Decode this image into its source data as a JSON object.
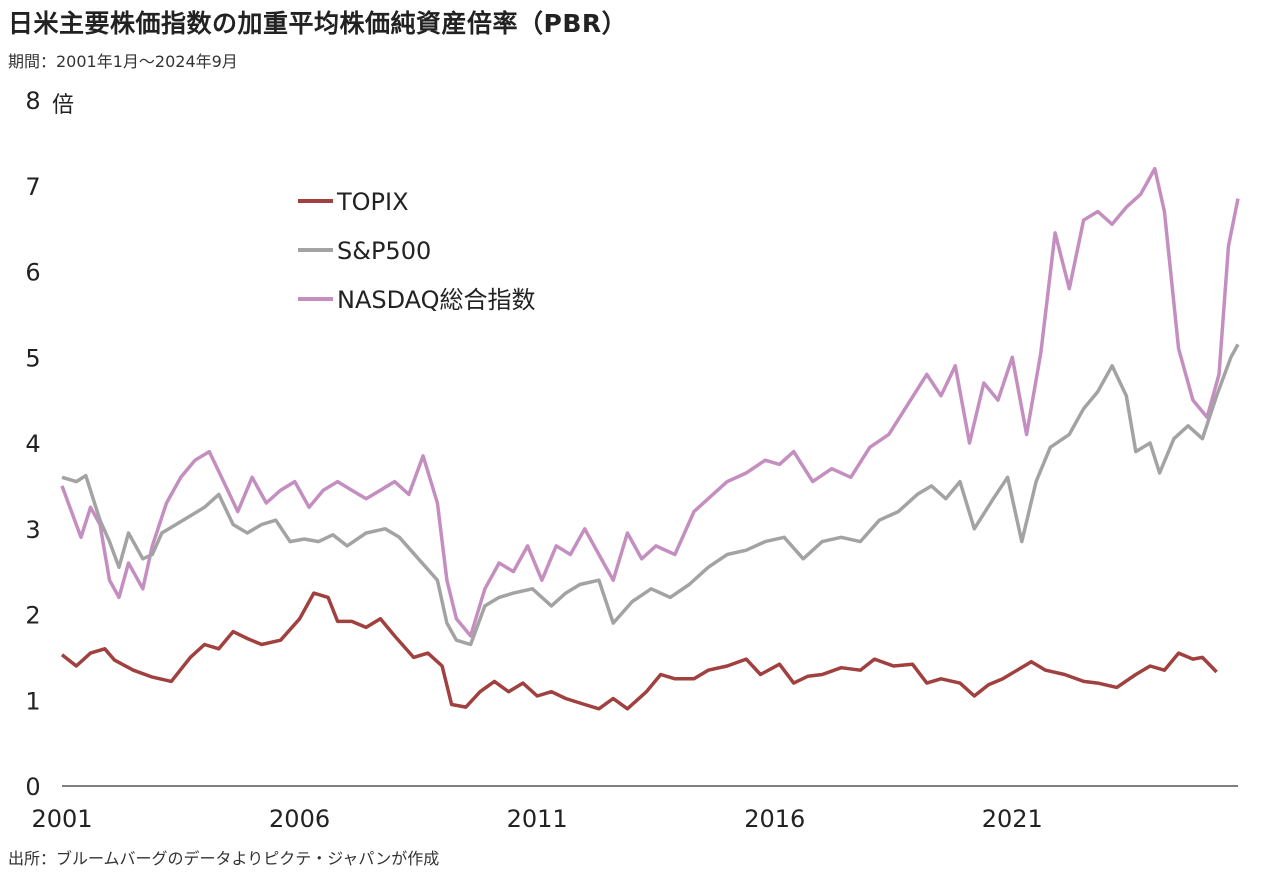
{
  "header": {
    "title": "日米主要株価指数の加重平均株価純資産倍率（PBR）",
    "period": "期間：2001年1月～2024年9月"
  },
  "footer": {
    "source": "出所：ブルームバーグのデータよりピクテ・ジャパンが作成"
  },
  "chart_data": {
    "type": "line",
    "ylabel": "倍",
    "ylim": [
      0,
      8
    ],
    "yticks": [
      "0",
      "1",
      "2",
      "3",
      "4",
      "5",
      "6",
      "7",
      "8"
    ],
    "xlim": [
      2001.0,
      2025.75
    ],
    "xticks": [
      {
        "label": "2001",
        "value": 2001
      },
      {
        "label": "2006",
        "value": 2006
      },
      {
        "label": "2011",
        "value": 2011
      },
      {
        "label": "2016",
        "value": 2016
      },
      {
        "label": "2021",
        "value": 2021
      }
    ],
    "grid": false,
    "legend_position": "upper-left-inside",
    "series": [
      {
        "name": "TOPIX",
        "color": "#a0403f",
        "points": [
          [
            2001.0,
            1.53
          ],
          [
            2001.3,
            1.4
          ],
          [
            2001.6,
            1.55
          ],
          [
            2001.9,
            1.6
          ],
          [
            2002.1,
            1.47
          ],
          [
            2002.5,
            1.35
          ],
          [
            2002.9,
            1.27
          ],
          [
            2003.3,
            1.22
          ],
          [
            2003.7,
            1.5
          ],
          [
            2004.0,
            1.65
          ],
          [
            2004.3,
            1.6
          ],
          [
            2004.6,
            1.8
          ],
          [
            2004.9,
            1.72
          ],
          [
            2005.2,
            1.65
          ],
          [
            2005.6,
            1.7
          ],
          [
            2006.0,
            1.95
          ],
          [
            2006.3,
            2.25
          ],
          [
            2006.6,
            2.2
          ],
          [
            2006.8,
            1.92
          ],
          [
            2007.1,
            1.92
          ],
          [
            2007.4,
            1.85
          ],
          [
            2007.7,
            1.95
          ],
          [
            2008.0,
            1.75
          ],
          [
            2008.4,
            1.5
          ],
          [
            2008.7,
            1.55
          ],
          [
            2009.0,
            1.4
          ],
          [
            2009.2,
            0.95
          ],
          [
            2009.5,
            0.92
          ],
          [
            2009.8,
            1.1
          ],
          [
            2010.1,
            1.22
          ],
          [
            2010.4,
            1.1
          ],
          [
            2010.7,
            1.2
          ],
          [
            2011.0,
            1.05
          ],
          [
            2011.3,
            1.1
          ],
          [
            2011.6,
            1.02
          ],
          [
            2012.0,
            0.95
          ],
          [
            2012.3,
            0.9
          ],
          [
            2012.6,
            1.02
          ],
          [
            2012.9,
            0.9
          ],
          [
            2013.3,
            1.1
          ],
          [
            2013.6,
            1.3
          ],
          [
            2013.9,
            1.25
          ],
          [
            2014.3,
            1.25
          ],
          [
            2014.6,
            1.35
          ],
          [
            2015.0,
            1.4
          ],
          [
            2015.4,
            1.48
          ],
          [
            2015.7,
            1.3
          ],
          [
            2016.1,
            1.42
          ],
          [
            2016.4,
            1.2
          ],
          [
            2016.7,
            1.28
          ],
          [
            2017.0,
            1.3
          ],
          [
            2017.4,
            1.38
          ],
          [
            2017.8,
            1.35
          ],
          [
            2018.1,
            1.48
          ],
          [
            2018.5,
            1.4
          ],
          [
            2018.9,
            1.42
          ],
          [
            2019.2,
            1.2
          ],
          [
            2019.5,
            1.25
          ],
          [
            2019.9,
            1.2
          ],
          [
            2020.2,
            1.05
          ],
          [
            2020.5,
            1.18
          ],
          [
            2020.8,
            1.25
          ],
          [
            2021.1,
            1.35
          ],
          [
            2021.4,
            1.45
          ],
          [
            2021.7,
            1.35
          ],
          [
            2022.1,
            1.3
          ],
          [
            2022.5,
            1.22
          ],
          [
            2022.8,
            1.2
          ],
          [
            2023.2,
            1.15
          ],
          [
            2023.6,
            1.3
          ],
          [
            2023.9,
            1.4
          ],
          [
            2024.2,
            1.35
          ],
          [
            2024.5,
            1.55
          ],
          [
            2024.8,
            1.48
          ],
          [
            2025.0,
            1.5
          ],
          [
            2025.3,
            1.33
          ]
        ]
      },
      {
        "name": "S&P500",
        "color": "#a3a3a3",
        "points": [
          [
            2001.0,
            3.6
          ],
          [
            2001.3,
            3.55
          ],
          [
            2001.5,
            3.62
          ],
          [
            2001.8,
            3.1
          ],
          [
            2002.0,
            2.85
          ],
          [
            2002.2,
            2.55
          ],
          [
            2002.4,
            2.95
          ],
          [
            2002.7,
            2.65
          ],
          [
            2002.9,
            2.7
          ],
          [
            2003.1,
            2.95
          ],
          [
            2003.4,
            3.05
          ],
          [
            2003.7,
            3.15
          ],
          [
            2004.0,
            3.25
          ],
          [
            2004.3,
            3.4
          ],
          [
            2004.6,
            3.05
          ],
          [
            2004.9,
            2.95
          ],
          [
            2005.2,
            3.05
          ],
          [
            2005.5,
            3.1
          ],
          [
            2005.8,
            2.85
          ],
          [
            2006.1,
            2.88
          ],
          [
            2006.4,
            2.85
          ],
          [
            2006.7,
            2.93
          ],
          [
            2007.0,
            2.8
          ],
          [
            2007.4,
            2.95
          ],
          [
            2007.8,
            3.0
          ],
          [
            2008.1,
            2.9
          ],
          [
            2008.5,
            2.65
          ],
          [
            2008.9,
            2.4
          ],
          [
            2009.1,
            1.9
          ],
          [
            2009.3,
            1.7
          ],
          [
            2009.6,
            1.65
          ],
          [
            2009.9,
            2.1
          ],
          [
            2010.2,
            2.2
          ],
          [
            2010.5,
            2.25
          ],
          [
            2010.9,
            2.3
          ],
          [
            2011.3,
            2.1
          ],
          [
            2011.6,
            2.25
          ],
          [
            2011.9,
            2.35
          ],
          [
            2012.3,
            2.4
          ],
          [
            2012.6,
            1.9
          ],
          [
            2013.0,
            2.15
          ],
          [
            2013.4,
            2.3
          ],
          [
            2013.8,
            2.2
          ],
          [
            2014.2,
            2.35
          ],
          [
            2014.6,
            2.55
          ],
          [
            2015.0,
            2.7
          ],
          [
            2015.4,
            2.75
          ],
          [
            2015.8,
            2.85
          ],
          [
            2016.2,
            2.9
          ],
          [
            2016.6,
            2.65
          ],
          [
            2017.0,
            2.85
          ],
          [
            2017.4,
            2.9
          ],
          [
            2017.8,
            2.85
          ],
          [
            2018.2,
            3.1
          ],
          [
            2018.6,
            3.2
          ],
          [
            2019.0,
            3.4
          ],
          [
            2019.3,
            3.5
          ],
          [
            2019.6,
            3.35
          ],
          [
            2019.9,
            3.55
          ],
          [
            2020.2,
            3.0
          ],
          [
            2020.6,
            3.35
          ],
          [
            2020.9,
            3.6
          ],
          [
            2021.2,
            2.85
          ],
          [
            2021.5,
            3.55
          ],
          [
            2021.8,
            3.95
          ],
          [
            2022.2,
            4.1
          ],
          [
            2022.5,
            4.4
          ],
          [
            2022.8,
            4.6
          ],
          [
            2023.1,
            4.9
          ],
          [
            2023.4,
            4.55
          ],
          [
            2023.6,
            3.9
          ],
          [
            2023.9,
            4.0
          ],
          [
            2024.1,
            3.65
          ],
          [
            2024.4,
            4.05
          ],
          [
            2024.7,
            4.2
          ],
          [
            2025.0,
            4.05
          ],
          [
            2025.3,
            4.55
          ],
          [
            2025.6,
            5.0
          ],
          [
            2025.75,
            5.15
          ]
        ]
      },
      {
        "name": "NASDAQ総合指数",
        "color": "#c48fc0",
        "points": [
          [
            2001.0,
            3.5
          ],
          [
            2001.2,
            3.2
          ],
          [
            2001.4,
            2.9
          ],
          [
            2001.6,
            3.25
          ],
          [
            2001.8,
            3.05
          ],
          [
            2002.0,
            2.4
          ],
          [
            2002.2,
            2.2
          ],
          [
            2002.4,
            2.6
          ],
          [
            2002.7,
            2.3
          ],
          [
            2002.9,
            2.8
          ],
          [
            2003.2,
            3.3
          ],
          [
            2003.5,
            3.6
          ],
          [
            2003.8,
            3.8
          ],
          [
            2004.1,
            3.9
          ],
          [
            2004.4,
            3.55
          ],
          [
            2004.7,
            3.2
          ],
          [
            2005.0,
            3.6
          ],
          [
            2005.3,
            3.3
          ],
          [
            2005.6,
            3.45
          ],
          [
            2005.9,
            3.55
          ],
          [
            2006.2,
            3.25
          ],
          [
            2006.5,
            3.45
          ],
          [
            2006.8,
            3.55
          ],
          [
            2007.1,
            3.45
          ],
          [
            2007.4,
            3.35
          ],
          [
            2007.7,
            3.45
          ],
          [
            2008.0,
            3.55
          ],
          [
            2008.3,
            3.4
          ],
          [
            2008.6,
            3.85
          ],
          [
            2008.9,
            3.3
          ],
          [
            2009.1,
            2.4
          ],
          [
            2009.3,
            1.95
          ],
          [
            2009.6,
            1.75
          ],
          [
            2009.9,
            2.3
          ],
          [
            2010.2,
            2.6
          ],
          [
            2010.5,
            2.5
          ],
          [
            2010.8,
            2.8
          ],
          [
            2011.1,
            2.4
          ],
          [
            2011.4,
            2.8
          ],
          [
            2011.7,
            2.7
          ],
          [
            2012.0,
            3.0
          ],
          [
            2012.3,
            2.7
          ],
          [
            2012.6,
            2.4
          ],
          [
            2012.9,
            2.95
          ],
          [
            2013.2,
            2.65
          ],
          [
            2013.5,
            2.8
          ],
          [
            2013.9,
            2.7
          ],
          [
            2014.3,
            3.2
          ],
          [
            2014.6,
            3.35
          ],
          [
            2015.0,
            3.55
          ],
          [
            2015.4,
            3.65
          ],
          [
            2015.8,
            3.8
          ],
          [
            2016.1,
            3.75
          ],
          [
            2016.4,
            3.9
          ],
          [
            2016.8,
            3.55
          ],
          [
            2017.2,
            3.7
          ],
          [
            2017.6,
            3.6
          ],
          [
            2018.0,
            3.95
          ],
          [
            2018.4,
            4.1
          ],
          [
            2018.8,
            4.45
          ],
          [
            2019.2,
            4.8
          ],
          [
            2019.5,
            4.55
          ],
          [
            2019.8,
            4.9
          ],
          [
            2020.1,
            4.0
          ],
          [
            2020.4,
            4.7
          ],
          [
            2020.7,
            4.5
          ],
          [
            2021.0,
            5.0
          ],
          [
            2021.3,
            4.1
          ],
          [
            2021.6,
            5.05
          ],
          [
            2021.9,
            6.45
          ],
          [
            2022.2,
            5.8
          ],
          [
            2022.5,
            6.6
          ],
          [
            2022.8,
            6.7
          ],
          [
            2023.1,
            6.55
          ],
          [
            2023.4,
            6.75
          ],
          [
            2023.7,
            6.9
          ],
          [
            2024.0,
            7.2
          ],
          [
            2024.2,
            6.7
          ],
          [
            2024.5,
            5.1
          ],
          [
            2024.8,
            4.5
          ],
          [
            2025.1,
            4.3
          ],
          [
            2025.35,
            4.8
          ],
          [
            2025.55,
            6.3
          ],
          [
            2025.75,
            6.85
          ]
        ]
      }
    ]
  }
}
